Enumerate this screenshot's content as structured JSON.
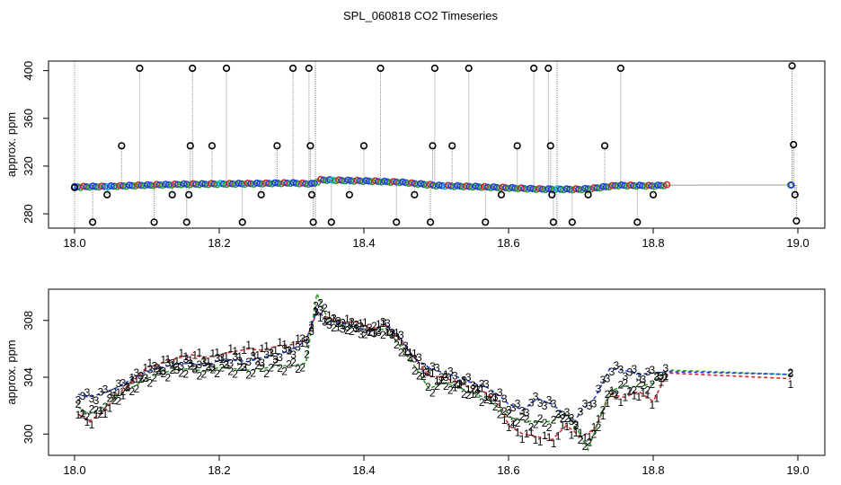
{
  "chart_data": [
    {
      "type": "scatter",
      "title": "SPL_060818  CO2 Timeseries",
      "xlabel": "",
      "ylabel": "approx. ppm",
      "xlim": [
        18.0,
        19.0
      ],
      "ylim": [
        268,
        408
      ],
      "xticks": [
        "18.0",
        "18.2",
        "18.4",
        "18.6",
        "18.8",
        "19.0"
      ],
      "yticks": [
        "280",
        "320",
        "360",
        "400"
      ],
      "series_colors": {
        "c1": "#d62728",
        "c2": "#2ca02c",
        "c3": "#1f3fd6",
        "outlier": "#000000",
        "cyan": "#00bcd4"
      },
      "baseline": [
        [
          18.0,
          302.5
        ],
        [
          18.05,
          303.0
        ],
        [
          18.1,
          304.0
        ],
        [
          18.15,
          304.7
        ],
        [
          18.2,
          305.0
        ],
        [
          18.25,
          305.3
        ],
        [
          18.3,
          305.8
        ],
        [
          18.33,
          305.0
        ],
        [
          18.34,
          308.4
        ],
        [
          18.4,
          307.5
        ],
        [
          18.45,
          306.5
        ],
        [
          18.5,
          303.7
        ],
        [
          18.55,
          302.8
        ],
        [
          18.6,
          301.7
        ],
        [
          18.62,
          301.2
        ],
        [
          18.65,
          300.6
        ],
        [
          18.7,
          300.5
        ],
        [
          18.72,
          301.5
        ],
        [
          18.75,
          303.8
        ],
        [
          18.8,
          303.4
        ],
        [
          18.82,
          304.0
        ],
        [
          18.99,
          304.1
        ]
      ],
      "outliers": [
        [
          18.0,
          302
        ],
        [
          18.025,
          273
        ],
        [
          18.045,
          296
        ],
        [
          18.065,
          337
        ],
        [
          18.09,
          402
        ],
        [
          18.11,
          273
        ],
        [
          18.135,
          296
        ],
        [
          18.155,
          273
        ],
        [
          18.158,
          296
        ],
        [
          18.16,
          337
        ],
        [
          18.163,
          402
        ],
        [
          18.19,
          337
        ],
        [
          18.21,
          402
        ],
        [
          18.232,
          273
        ],
        [
          18.258,
          296
        ],
        [
          18.28,
          337
        ],
        [
          18.302,
          402
        ],
        [
          18.324,
          402
        ],
        [
          18.326,
          337
        ],
        [
          18.328,
          296
        ],
        [
          18.33,
          273
        ],
        [
          18.355,
          273
        ],
        [
          18.38,
          296
        ],
        [
          18.4,
          337
        ],
        [
          18.423,
          402
        ],
        [
          18.445,
          273
        ],
        [
          18.47,
          296
        ],
        [
          18.492,
          273
        ],
        [
          18.495,
          337
        ],
        [
          18.498,
          402
        ],
        [
          18.522,
          337
        ],
        [
          18.545,
          402
        ],
        [
          18.568,
          273
        ],
        [
          18.59,
          296
        ],
        [
          18.612,
          337
        ],
        [
          18.635,
          402
        ],
        [
          18.655,
          402
        ],
        [
          18.658,
          337
        ],
        [
          18.66,
          296
        ],
        [
          18.662,
          273
        ],
        [
          18.688,
          273
        ],
        [
          18.71,
          296
        ],
        [
          18.733,
          337
        ],
        [
          18.755,
          402
        ],
        [
          18.778,
          273
        ],
        [
          18.8,
          296
        ],
        [
          18.992,
          404
        ],
        [
          18.994,
          338
        ],
        [
          18.996,
          296
        ],
        [
          18.998,
          274
        ]
      ]
    },
    {
      "type": "line",
      "title": "",
      "xlabel": "",
      "ylabel": "approx. ppm",
      "xlim": [
        18.0,
        19.0
      ],
      "ylim": [
        298.5,
        310.2
      ],
      "xticks": [
        "18.0",
        "18.2",
        "18.4",
        "18.6",
        "18.8",
        "19.0"
      ],
      "yticks": [
        "300",
        "304",
        "308"
      ],
      "series": [
        {
          "name": "1",
          "color": "#d62728",
          "symbol": "1",
          "values": [
            [
              18.005,
              301.4
            ],
            [
              18.02,
              300.9
            ],
            [
              18.04,
              301.6
            ],
            [
              18.06,
              302.8
            ],
            [
              18.08,
              303.7
            ],
            [
              18.1,
              304.7
            ],
            [
              18.12,
              305.0
            ],
            [
              18.14,
              305.3
            ],
            [
              18.16,
              305.6
            ],
            [
              18.18,
              305.4
            ],
            [
              18.2,
              305.6
            ],
            [
              18.22,
              305.8
            ],
            [
              18.24,
              306.0
            ],
            [
              18.26,
              305.9
            ],
            [
              18.28,
              306.2
            ],
            [
              18.3,
              306.3
            ],
            [
              18.32,
              306.6
            ],
            [
              18.335,
              308.6
            ],
            [
              18.35,
              308.2
            ],
            [
              18.37,
              307.8
            ],
            [
              18.39,
              307.9
            ],
            [
              18.41,
              307.4
            ],
            [
              18.43,
              307.7
            ],
            [
              18.45,
              306.6
            ],
            [
              18.47,
              305.4
            ],
            [
              18.49,
              304.1
            ],
            [
              18.51,
              304.0
            ],
            [
              18.53,
              303.6
            ],
            [
              18.55,
              303.2
            ],
            [
              18.57,
              302.9
            ],
            [
              18.59,
              301.9
            ],
            [
              18.6,
              300.6
            ],
            [
              18.62,
              300.0
            ],
            [
              18.64,
              299.8
            ],
            [
              18.66,
              299.6
            ],
            [
              18.68,
              300.6
            ],
            [
              18.69,
              300.2
            ],
            [
              18.7,
              299.8
            ],
            [
              18.72,
              300.4
            ],
            [
              18.74,
              302.8
            ],
            [
              18.76,
              302.6
            ],
            [
              18.78,
              303.0
            ],
            [
              18.8,
              302.3
            ],
            [
              18.82,
              304.3
            ],
            [
              18.99,
              303.9
            ]
          ]
        },
        {
          "name": "2",
          "color": "#2ca02c",
          "symbol": "2",
          "values": [
            [
              18.005,
              301.9
            ],
            [
              18.02,
              301.4
            ],
            [
              18.04,
              301.9
            ],
            [
              18.06,
              302.7
            ],
            [
              18.08,
              303.3
            ],
            [
              18.1,
              303.9
            ],
            [
              18.12,
              304.3
            ],
            [
              18.14,
              304.5
            ],
            [
              18.16,
              304.6
            ],
            [
              18.18,
              304.4
            ],
            [
              18.2,
              304.7
            ],
            [
              18.22,
              304.6
            ],
            [
              18.24,
              304.5
            ],
            [
              18.26,
              304.6
            ],
            [
              18.28,
              304.8
            ],
            [
              18.3,
              304.8
            ],
            [
              18.32,
              305.0
            ],
            [
              18.335,
              309.9
            ],
            [
              18.35,
              308.1
            ],
            [
              18.37,
              307.6
            ],
            [
              18.39,
              307.5
            ],
            [
              18.41,
              307.3
            ],
            [
              18.43,
              307.4
            ],
            [
              18.45,
              306.2
            ],
            [
              18.47,
              304.8
            ],
            [
              18.49,
              303.2
            ],
            [
              18.51,
              303.6
            ],
            [
              18.53,
              303.3
            ],
            [
              18.55,
              302.9
            ],
            [
              18.57,
              302.5
            ],
            [
              18.59,
              301.7
            ],
            [
              18.6,
              301.2
            ],
            [
              18.62,
              301.0
            ],
            [
              18.64,
              300.8
            ],
            [
              18.66,
              300.9
            ],
            [
              18.68,
              301.5
            ],
            [
              18.7,
              299.9
            ],
            [
              18.71,
              298.9
            ],
            [
              18.72,
              300.3
            ],
            [
              18.74,
              303.0
            ],
            [
              18.76,
              303.4
            ],
            [
              18.78,
              303.3
            ],
            [
              18.8,
              303.6
            ],
            [
              18.82,
              304.5
            ],
            [
              18.99,
              304.2
            ]
          ]
        },
        {
          "name": "3",
          "color": "#1f3fd6",
          "symbol": "3",
          "values": [
            [
              18.005,
              302.8
            ],
            [
              18.02,
              302.6
            ],
            [
              18.04,
              302.9
            ],
            [
              18.06,
              303.3
            ],
            [
              18.08,
              303.9
            ],
            [
              18.1,
              304.4
            ],
            [
              18.12,
              304.7
            ],
            [
              18.14,
              304.9
            ],
            [
              18.16,
              305.0
            ],
            [
              18.18,
              304.8
            ],
            [
              18.2,
              305.2
            ],
            [
              18.22,
              305.2
            ],
            [
              18.24,
              305.1
            ],
            [
              18.26,
              305.4
            ],
            [
              18.28,
              305.6
            ],
            [
              18.3,
              305.9
            ],
            [
              18.32,
              306.6
            ],
            [
              18.335,
              308.7
            ],
            [
              18.35,
              308.0
            ],
            [
              18.37,
              307.8
            ],
            [
              18.39,
              307.5
            ],
            [
              18.41,
              307.2
            ],
            [
              18.43,
              307.8
            ],
            [
              18.45,
              306.8
            ],
            [
              18.47,
              305.3
            ],
            [
              18.49,
              304.7
            ],
            [
              18.51,
              304.3
            ],
            [
              18.53,
              304.0
            ],
            [
              18.55,
              303.6
            ],
            [
              18.57,
              303.3
            ],
            [
              18.59,
              302.6
            ],
            [
              18.6,
              302.1
            ],
            [
              18.62,
              301.7
            ],
            [
              18.64,
              302.5
            ],
            [
              18.66,
              302.1
            ],
            [
              18.68,
              301.3
            ],
            [
              18.69,
              300.8
            ],
            [
              18.7,
              301.6
            ],
            [
              18.72,
              302.6
            ],
            [
              18.74,
              304.6
            ],
            [
              18.76,
              304.5
            ],
            [
              18.78,
              304.2
            ],
            [
              18.8,
              304.3
            ],
            [
              18.82,
              304.4
            ],
            [
              18.99,
              304.2
            ]
          ]
        }
      ]
    }
  ]
}
